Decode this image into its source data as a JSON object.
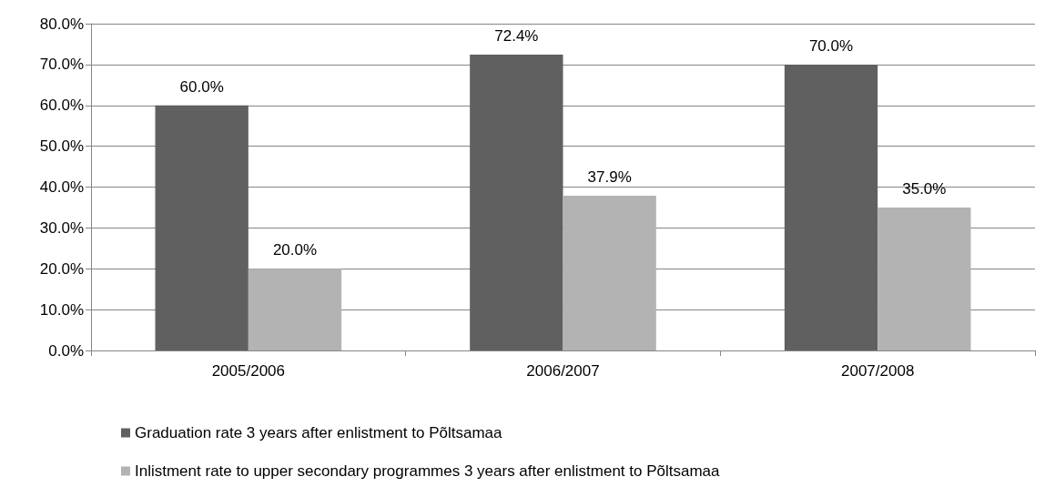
{
  "chart_data": {
    "type": "bar",
    "categories": [
      "2005/2006",
      "2006/2007",
      "2007/2008"
    ],
    "series": [
      {
        "name": "Graduation rate 3 years after enlistment to Põltsamaa",
        "color": "#606060",
        "values": [
          60.0,
          72.4,
          70.0
        ],
        "value_labels": [
          "60.0%",
          "72.4%",
          "70.0%"
        ]
      },
      {
        "name": "Inlistment rate to upper secondary programmes 3 years after enlistment to Põltsamaa",
        "color": "#b3b3b3",
        "values": [
          20.0,
          37.9,
          35.0
        ],
        "value_labels": [
          "20.0%",
          "37.9%",
          "35.0%"
        ]
      }
    ],
    "ylim": [
      0,
      80
    ],
    "yticks": [
      {
        "value": 0,
        "label": "0.0%"
      },
      {
        "value": 10,
        "label": "10.0%"
      },
      {
        "value": 20,
        "label": "20.0%"
      },
      {
        "value": 30,
        "label": "30.0%"
      },
      {
        "value": 40,
        "label": "40.0%"
      },
      {
        "value": 50,
        "label": "50.0%"
      },
      {
        "value": 60,
        "label": "60.0%"
      },
      {
        "value": 70,
        "label": "70.0%"
      },
      {
        "value": 80,
        "label": "80.0%"
      }
    ],
    "grid": "y",
    "legend": "bottom"
  }
}
